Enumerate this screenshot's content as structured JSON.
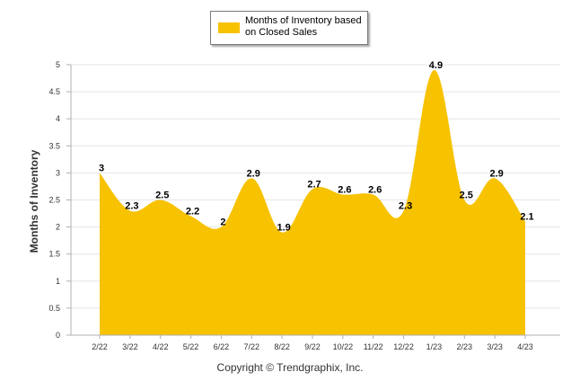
{
  "chart_data": {
    "type": "area",
    "title": "",
    "ylabel": "Months of Inventory",
    "xlabel": "",
    "ylim": [
      0,
      5
    ],
    "yticks": [
      "0",
      "0.5",
      "1",
      "1.5",
      "2",
      "2.5",
      "3",
      "3.5",
      "4",
      "4.5",
      "5"
    ],
    "grid": true,
    "legend_position": "top-center",
    "categories": [
      "2/22",
      "3/22",
      "4/22",
      "5/22",
      "6/22",
      "7/22",
      "8/22",
      "9/22",
      "10/22",
      "11/22",
      "12/22",
      "1/23",
      "2/23",
      "3/23",
      "4/23"
    ],
    "series": [
      {
        "name": "Months of Inventory based on Closed Sales",
        "values": [
          3,
          2.3,
          2.5,
          2.2,
          2,
          2.9,
          1.9,
          2.7,
          2.6,
          2.6,
          2.3,
          4.9,
          2.5,
          2.9,
          2.1
        ],
        "labels": [
          "3",
          "2.3",
          "2.5",
          "2.2",
          "2",
          "2.9",
          "1.9",
          "2.7",
          "2.6",
          "2.6",
          "2.3",
          "4.9",
          "2.5",
          "2.9",
          "2.1"
        ],
        "color": "#f7c200"
      }
    ],
    "copyright": "Copyright © Trendgraphix, Inc."
  }
}
